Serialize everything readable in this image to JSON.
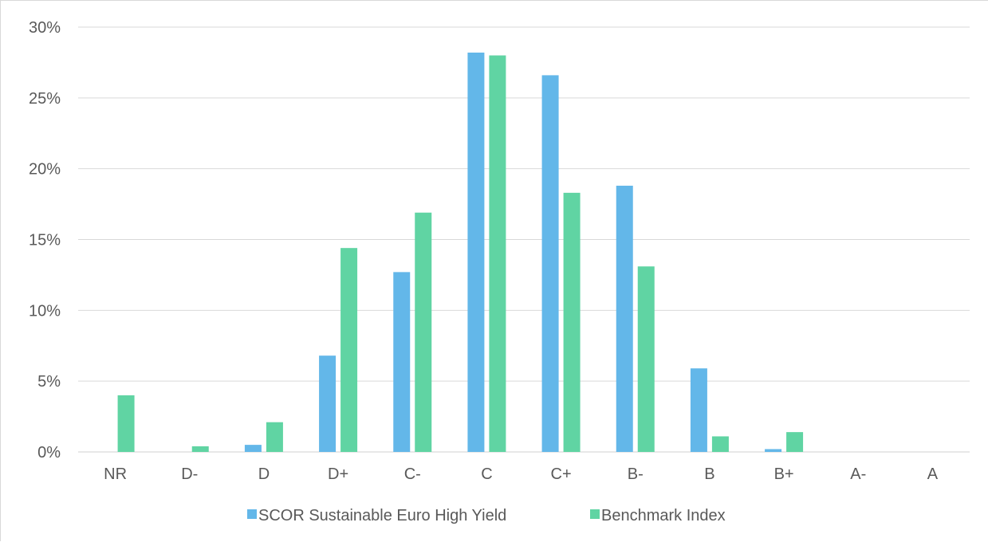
{
  "chart_data": {
    "type": "bar",
    "categories": [
      "NR",
      "D-",
      "D",
      "D+",
      "C-",
      "C",
      "C+",
      "B-",
      "B",
      "B+",
      "A-",
      "A"
    ],
    "series": [
      {
        "name": "SCOR Sustainable Euro High Yield",
        "color": "#63b7e9",
        "values": [
          0,
          0,
          0.5,
          6.8,
          12.7,
          28.2,
          26.6,
          18.8,
          5.9,
          0.2,
          0,
          0
        ]
      },
      {
        "name": "Benchmark Index",
        "color": "#60d4a3",
        "values": [
          4.0,
          0.4,
          2.1,
          14.4,
          16.9,
          28.0,
          18.3,
          13.1,
          1.1,
          1.4,
          0,
          0
        ]
      }
    ],
    "y_ticks": [
      "0%",
      "5%",
      "10%",
      "15%",
      "20%",
      "25%",
      "30%"
    ],
    "ylim": [
      0,
      30
    ],
    "grid": true,
    "legend_position": "bottom",
    "title": "",
    "xlabel": "",
    "ylabel": ""
  }
}
